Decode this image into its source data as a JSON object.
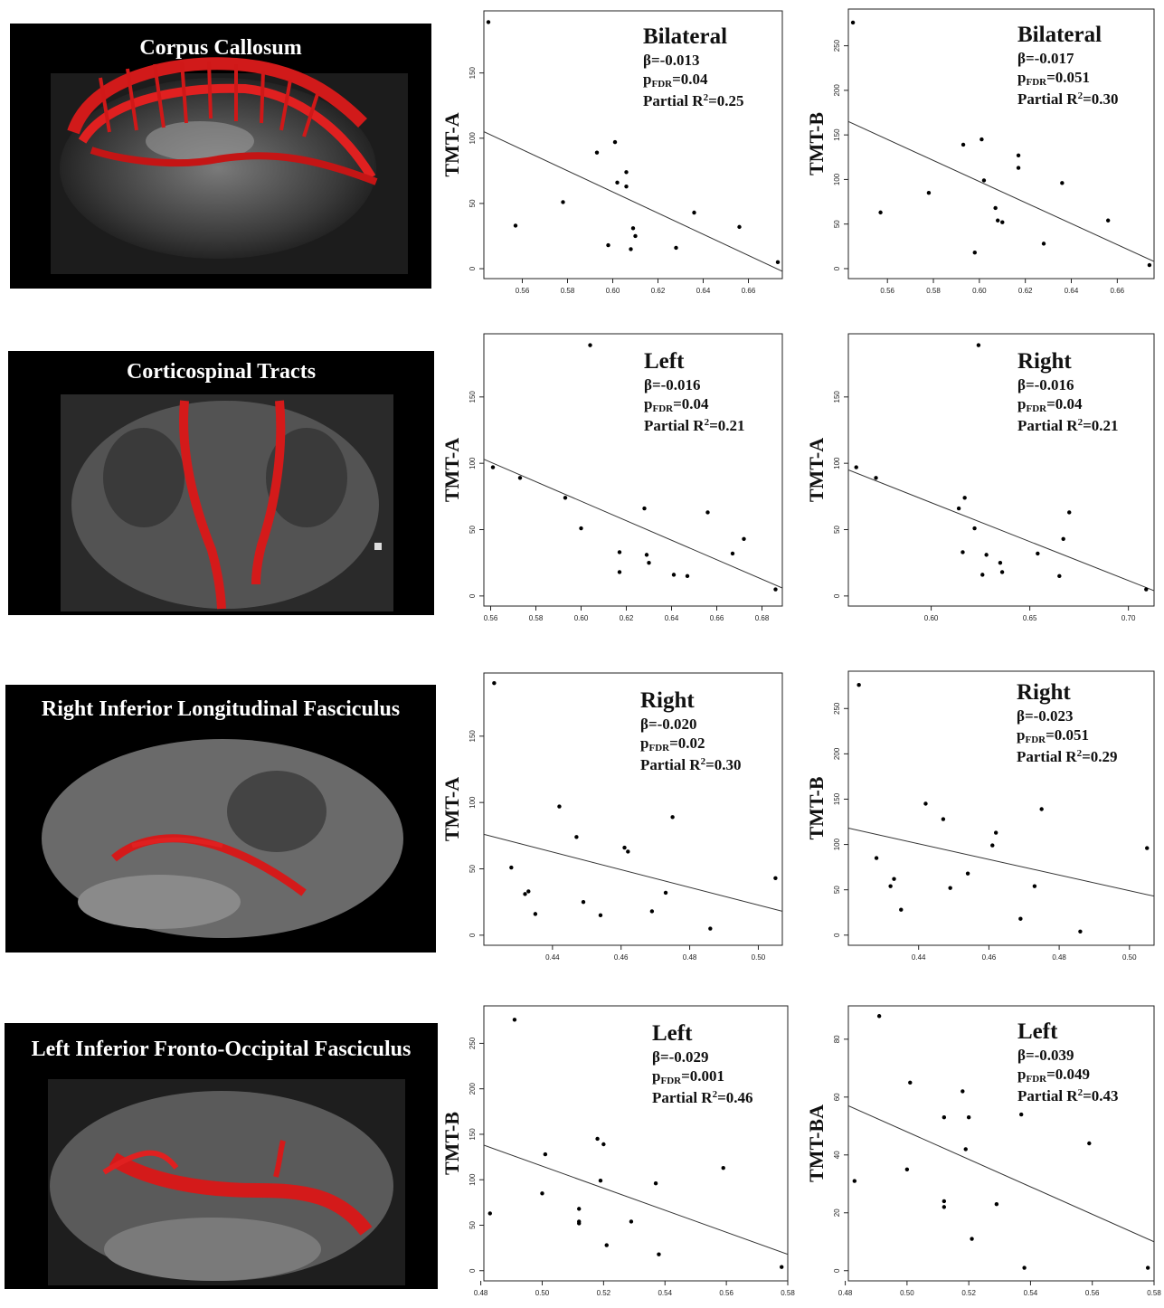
{
  "rows": [
    {
      "tract": "Corpus Callosum"
    },
    {
      "tract": "Corticospinal Tracts"
    },
    {
      "tract": "Right Inferior Longitudinal Fasciculus"
    },
    {
      "tract": "Left Inferior Fronto-Occipital Fasciculus"
    }
  ],
  "chart_data": [
    {
      "type": "scatter",
      "row": 0,
      "col": 0,
      "ylabel": "TMT-A",
      "side": "Bilateral",
      "beta": "β=-0.013",
      "p_label": "p",
      "p_sub": "FDR",
      "p_value": "=0.04",
      "r2_label": "Partial R",
      "r2_sup": "2",
      "r2_value": "=0.25",
      "xlim": [
        0.543,
        0.675
      ],
      "ylim": [
        0,
        190
      ],
      "xticks": [
        "0.56",
        "0.58",
        "0.60",
        "0.62",
        "0.64",
        "0.66"
      ],
      "yticks": [
        "0",
        "50",
        "100",
        "150"
      ],
      "x": [
        0.545,
        0.557,
        0.578,
        0.593,
        0.598,
        0.601,
        0.602,
        0.606,
        0.606,
        0.608,
        0.609,
        0.61,
        0.628,
        0.636,
        0.656,
        0.673
      ],
      "y": [
        189,
        33,
        51,
        89,
        18,
        97,
        66,
        74,
        63,
        15,
        31,
        25,
        16,
        43,
        32,
        5
      ],
      "fit": [
        [
          0.543,
          105
        ],
        [
          0.675,
          -2
        ]
      ]
    },
    {
      "type": "scatter",
      "row": 0,
      "col": 1,
      "ylabel": "TMT-B",
      "side": "Bilateral",
      "beta": "β=-0.017",
      "p_label": "p",
      "p_sub": "FDR",
      "p_value": "=0.051",
      "r2_label": "Partial R",
      "r2_sup": "2",
      "r2_value": "=0.30",
      "xlim": [
        0.543,
        0.676
      ],
      "ylim": [
        0,
        280
      ],
      "xticks": [
        "0.56",
        "0.58",
        "0.60",
        "0.62",
        "0.64",
        "0.66"
      ],
      "yticks": [
        "0",
        "50",
        "100",
        "150",
        "200",
        "250"
      ],
      "x": [
        0.545,
        0.557,
        0.578,
        0.593,
        0.598,
        0.601,
        0.602,
        0.607,
        0.608,
        0.61,
        0.617,
        0.617,
        0.628,
        0.636,
        0.656,
        0.674
      ],
      "y": [
        276,
        63,
        85,
        139,
        18,
        145,
        99,
        68,
        54,
        52,
        127,
        113,
        28,
        96,
        54,
        4
      ],
      "fit": [
        [
          0.543,
          165
        ],
        [
          0.676,
          8
        ]
      ]
    },
    {
      "type": "scatter",
      "row": 1,
      "col": 0,
      "ylabel": "TMT-A",
      "side": "Left",
      "beta": "β=-0.016",
      "p_label": "p",
      "p_sub": "FDR",
      "p_value": "=0.04",
      "r2_label": "Partial R",
      "r2_sup": "2",
      "r2_value": "=0.21",
      "xlim": [
        0.557,
        0.689
      ],
      "ylim": [
        0,
        190
      ],
      "xticks": [
        "0.56",
        "0.58",
        "0.60",
        "0.62",
        "0.64",
        "0.66",
        "0.68"
      ],
      "yticks": [
        "0",
        "50",
        "100",
        "150"
      ],
      "x": [
        0.561,
        0.573,
        0.593,
        0.6,
        0.604,
        0.617,
        0.617,
        0.628,
        0.629,
        0.63,
        0.641,
        0.647,
        0.656,
        0.667,
        0.672,
        0.686
      ],
      "y": [
        97,
        89,
        74,
        51,
        189,
        33,
        18,
        66,
        31,
        25,
        16,
        15,
        63,
        32,
        43,
        5
      ],
      "fit": [
        [
          0.557,
          103
        ],
        [
          0.689,
          6
        ]
      ]
    },
    {
      "type": "scatter",
      "row": 1,
      "col": 1,
      "ylabel": "TMT-A",
      "side": "Right",
      "beta": "β=-0.016",
      "p_label": "p",
      "p_sub": "FDR",
      "p_value": "=0.04",
      "r2_label": "Partial R",
      "r2_sup": "2",
      "r2_value": "=0.21",
      "xlim": [
        0.558,
        0.713
      ],
      "ylim": [
        0,
        190
      ],
      "xticks": [
        "0.60",
        "0.65",
        "0.70"
      ],
      "yticks": [
        "0",
        "50",
        "100",
        "150"
      ],
      "x": [
        0.562,
        0.572,
        0.614,
        0.616,
        0.617,
        0.622,
        0.624,
        0.626,
        0.628,
        0.635,
        0.636,
        0.654,
        0.665,
        0.667,
        0.67,
        0.709
      ],
      "y": [
        97,
        89,
        66,
        33,
        74,
        51,
        189,
        16,
        31,
        25,
        18,
        32,
        15,
        43,
        63,
        5
      ],
      "fit": [
        [
          0.558,
          95
        ],
        [
          0.713,
          4
        ]
      ]
    },
    {
      "type": "scatter",
      "row": 2,
      "col": 0,
      "ylabel": "TMT-A",
      "side": "Right",
      "beta": "β=-0.020",
      "p_label": "p",
      "p_sub": "FDR",
      "p_value": "=0.02",
      "r2_label": "Partial R",
      "r2_sup": "2",
      "r2_value": "=0.30",
      "xlim": [
        0.42,
        0.507
      ],
      "ylim": [
        0,
        190
      ],
      "xticks": [
        "0.44",
        "0.46",
        "0.48",
        "0.50"
      ],
      "yticks": [
        "0",
        "50",
        "100",
        "150"
      ],
      "x": [
        0.423,
        0.428,
        0.432,
        0.433,
        0.435,
        0.442,
        0.447,
        0.449,
        0.454,
        0.461,
        0.462,
        0.469,
        0.473,
        0.475,
        0.486,
        0.505
      ],
      "y": [
        190,
        51,
        31,
        33,
        16,
        97,
        74,
        25,
        15,
        66,
        63,
        18,
        32,
        89,
        5,
        43
      ],
      "fit": [
        [
          0.42,
          76
        ],
        [
          0.507,
          18
        ]
      ]
    },
    {
      "type": "scatter",
      "row": 2,
      "col": 1,
      "ylabel": "TMT-B",
      "side": "Right",
      "beta": "β=-0.023",
      "p_label": "p",
      "p_sub": "FDR",
      "p_value": "=0.051",
      "r2_label": "Partial R",
      "r2_sup": "2",
      "r2_value": "=0.29",
      "xlim": [
        0.42,
        0.507
      ],
      "ylim": [
        0,
        280
      ],
      "xticks": [
        "0.44",
        "0.46",
        "0.48",
        "0.50"
      ],
      "yticks": [
        "0",
        "50",
        "100",
        "150",
        "200",
        "250"
      ],
      "x": [
        0.423,
        0.428,
        0.432,
        0.433,
        0.435,
        0.442,
        0.447,
        0.449,
        0.454,
        0.461,
        0.462,
        0.469,
        0.473,
        0.475,
        0.486,
        0.505
      ],
      "y": [
        276,
        85,
        54,
        62,
        28,
        145,
        128,
        52,
        68,
        99,
        113,
        18,
        54,
        139,
        4,
        96
      ],
      "fit": [
        [
          0.42,
          118
        ],
        [
          0.507,
          43
        ]
      ]
    },
    {
      "type": "scatter",
      "row": 3,
      "col": 0,
      "ylabel": "TMT-B",
      "side": "Left",
      "beta": "β=-0.029",
      "p_label": "p",
      "p_sub": "FDR",
      "p_value": "=0.001",
      "r2_label": "Partial R",
      "r2_sup": "2",
      "r2_value": "=0.46",
      "xlim": [
        0.481,
        0.58
      ],
      "ylim": [
        0,
        280
      ],
      "xticks": [
        "0.48",
        "0.50",
        "0.52",
        "0.54",
        "0.56",
        "0.58"
      ],
      "yticks": [
        "0",
        "50",
        "100",
        "150",
        "200",
        "250"
      ],
      "x": [
        0.483,
        0.491,
        0.5,
        0.501,
        0.512,
        0.512,
        0.512,
        0.518,
        0.519,
        0.52,
        0.521,
        0.529,
        0.537,
        0.538,
        0.559,
        0.578
      ],
      "y": [
        63,
        276,
        85,
        128,
        68,
        54,
        52,
        145,
        99,
        139,
        28,
        54,
        96,
        18,
        113,
        4
      ],
      "fit": [
        [
          0.481,
          138
        ],
        [
          0.58,
          18
        ]
      ]
    },
    {
      "type": "scatter",
      "row": 3,
      "col": 1,
      "ylabel": "TMT-BA",
      "side": "Left",
      "beta": "β=-0.039",
      "p_label": "p",
      "p_sub": "FDR",
      "p_value": "=0.049",
      "r2_label": "Partial R",
      "r2_sup": "2",
      "r2_value": "=0.43",
      "xlim": [
        0.481,
        0.58
      ],
      "ylim": [
        0,
        88
      ],
      "xticks": [
        "0.48",
        "0.50",
        "0.52",
        "0.54",
        "0.56",
        "0.58"
      ],
      "yticks": [
        "0",
        "20",
        "40",
        "60",
        "80"
      ],
      "x": [
        0.483,
        0.491,
        0.5,
        0.501,
        0.512,
        0.512,
        0.512,
        0.518,
        0.519,
        0.52,
        0.521,
        0.529,
        0.537,
        0.538,
        0.559,
        0.578
      ],
      "y": [
        31,
        88,
        35,
        65,
        24,
        22,
        53,
        62,
        42,
        53,
        11,
        23,
        54,
        1,
        44,
        1
      ],
      "fit": [
        [
          0.481,
          57
        ],
        [
          0.58,
          10
        ]
      ]
    }
  ]
}
